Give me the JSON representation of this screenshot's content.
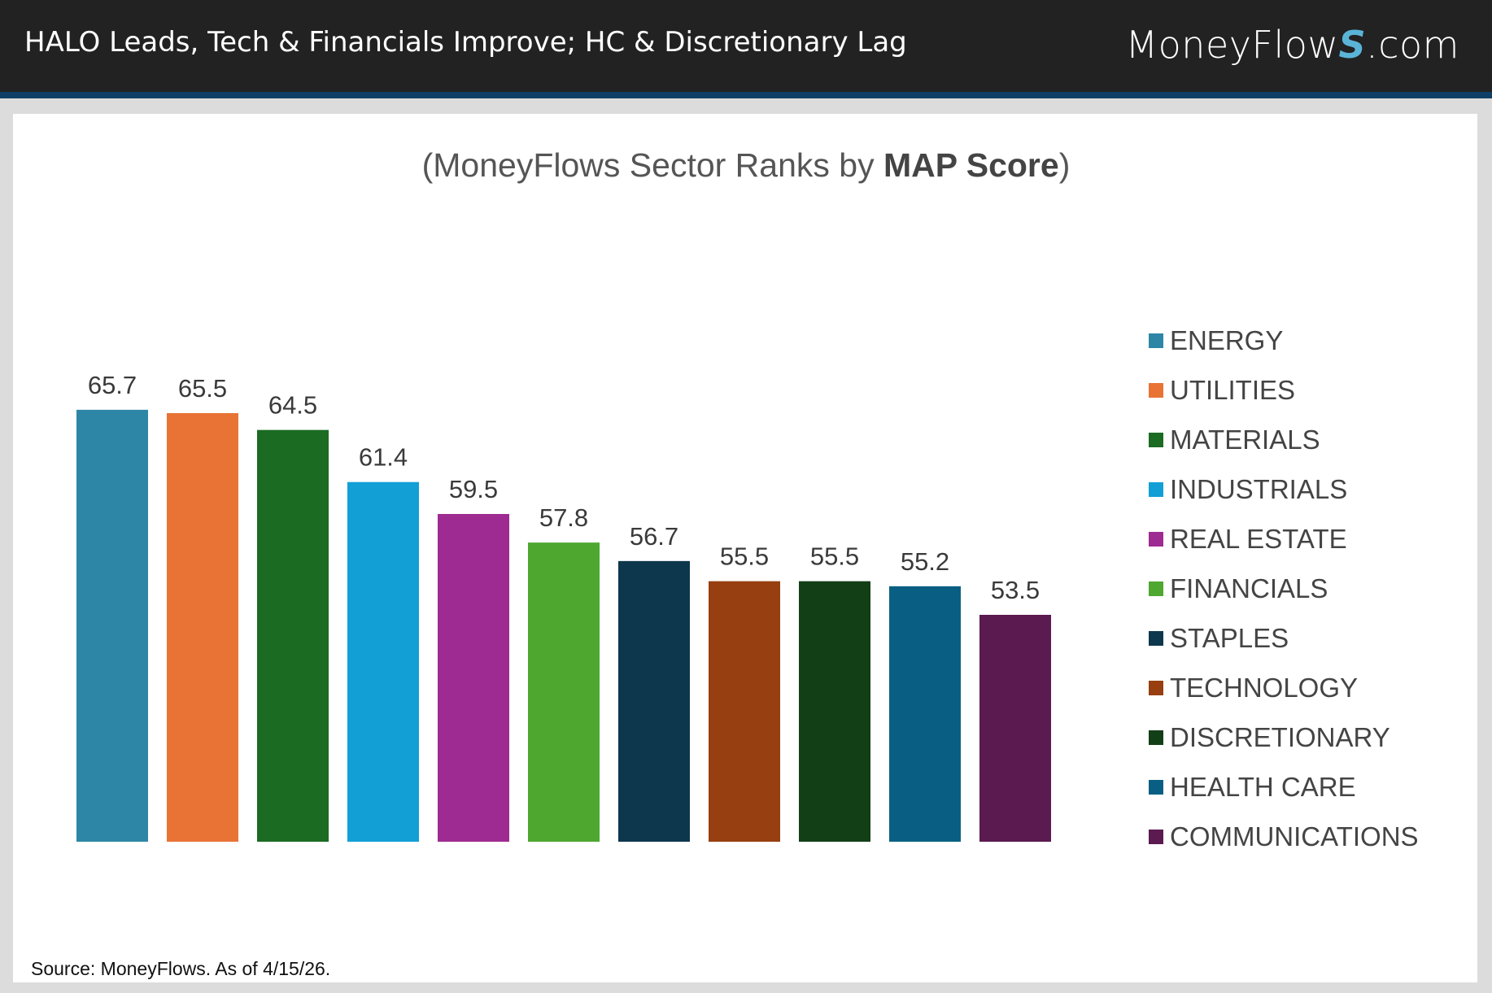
{
  "header": {
    "title": "HALO Leads, Tech & Financials Improve; HC & Discretionary Lag",
    "logo_main": "MoneyFlow",
    "logo_s": "S",
    "logo_suffix": ".com"
  },
  "chart_data": {
    "type": "bar",
    "title_prefix": "(MoneyFlows Sector Ranks by ",
    "title_bold": "MAP Score",
    "title_suffix": ")",
    "categories": [
      "ENERGY",
      "UTILITIES",
      "MATERIALS",
      "INDUSTRIALS",
      "REAL ESTATE",
      "FINANCIALS",
      "STAPLES",
      "TECHNOLOGY",
      "DISCRETIONARY",
      "HEALTH CARE",
      "COMMUNICATIONS"
    ],
    "values": [
      65.7,
      65.5,
      64.5,
      61.4,
      59.5,
      57.8,
      56.7,
      55.5,
      55.5,
      55.2,
      53.5
    ],
    "labels": [
      "65.7",
      "65.5",
      "64.5",
      "61.4",
      "59.5",
      "57.8",
      "56.7",
      "55.5",
      "55.5",
      "55.2",
      "53.5"
    ],
    "colors": [
      "#2e86a6",
      "#e87335",
      "#1b6b23",
      "#119fd6",
      "#9e2b91",
      "#4ea72f",
      "#0d374d",
      "#973f10",
      "#133f17",
      "#095f83",
      "#5b1a50"
    ],
    "ylim": [
      40,
      70
    ],
    "grid": false,
    "axes_visible": false,
    "legend_position": "right"
  },
  "source": "Source: MoneyFlows. As of 4/15/26."
}
